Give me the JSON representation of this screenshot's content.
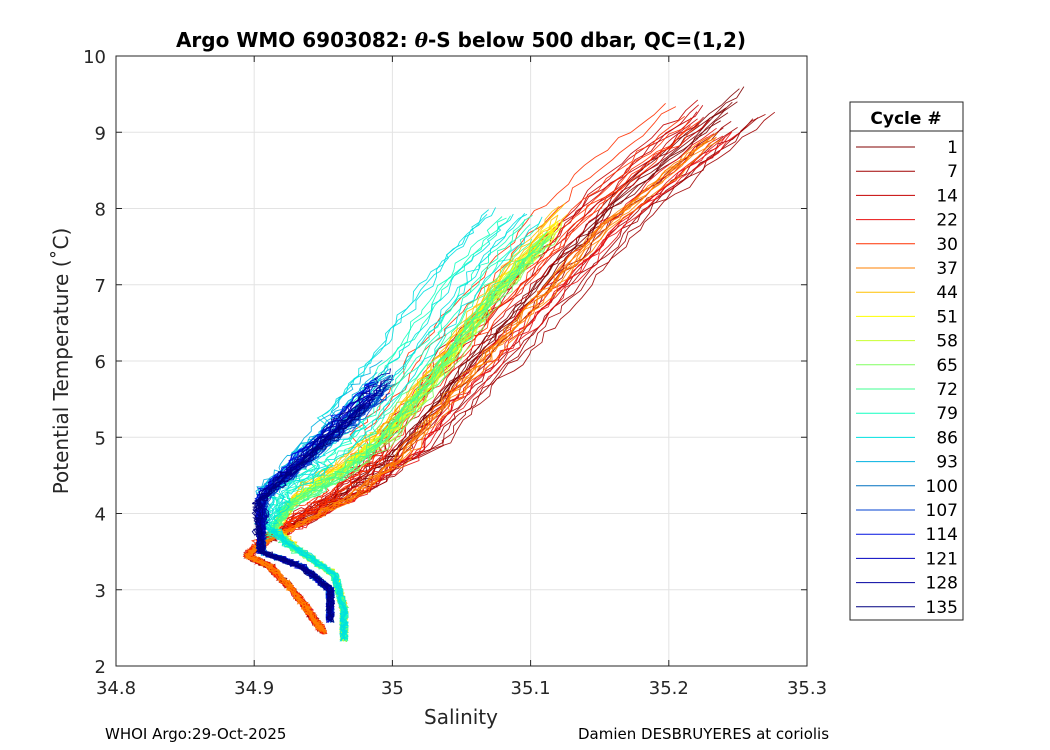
{
  "chart_data": {
    "type": "line",
    "title_prefix": "Argo WMO 6903082: ",
    "title_theta": "θ",
    "title_suffix": "-S below 500 dbar,  QC=(1,2)",
    "xlabel": "Salinity",
    "ylabel": "Potential Temperature (˚C)",
    "xlim": [
      34.8,
      35.3
    ],
    "ylim": [
      2,
      10
    ],
    "xticks": [
      34.8,
      34.9,
      35.0,
      35.1,
      35.2,
      35.3
    ],
    "xtick_labels": [
      "34.8",
      "34.9",
      "35",
      "35.1",
      "35.2",
      "35.3"
    ],
    "yticks": [
      2,
      3,
      4,
      5,
      6,
      7,
      8,
      9,
      10
    ],
    "ytick_labels": [
      "2",
      "3",
      "4",
      "5",
      "6",
      "7",
      "8",
      "9",
      "10"
    ],
    "grid": true,
    "legend": {
      "title": "Cycle #",
      "placement": "outside-right",
      "entries": [
        {
          "label": "1",
          "color": "#800000"
        },
        {
          "label": "7",
          "color": "#a00000"
        },
        {
          "label": "14",
          "color": "#c40000"
        },
        {
          "label": "22",
          "color": "#e81010"
        },
        {
          "label": "30",
          "color": "#ff3000"
        },
        {
          "label": "37",
          "color": "#ff8000"
        },
        {
          "label": "44",
          "color": "#ffc000"
        },
        {
          "label": "51",
          "color": "#ffff00"
        },
        {
          "label": "58",
          "color": "#c8ff30"
        },
        {
          "label": "65",
          "color": "#80ff60"
        },
        {
          "label": "72",
          "color": "#40ff90"
        },
        {
          "label": "79",
          "color": "#10ffc0"
        },
        {
          "label": "86",
          "color": "#00e0e0"
        },
        {
          "label": "93",
          "color": "#00b0e0"
        },
        {
          "label": "100",
          "color": "#0070c0"
        },
        {
          "label": "107",
          "color": "#0040d0"
        },
        {
          "label": "114",
          "color": "#0010e0"
        },
        {
          "label": "121",
          "color": "#0000c0"
        },
        {
          "label": "128",
          "color": "#0000a0"
        },
        {
          "label": "135",
          "color": "#000080"
        }
      ]
    },
    "profile_templates": {
      "early": [
        [
          34.95,
          2.45
        ],
        [
          34.944,
          2.6
        ],
        [
          34.93,
          2.95
        ],
        [
          34.912,
          3.3
        ],
        [
          34.895,
          3.45
        ],
        [
          34.905,
          3.6
        ],
        [
          34.93,
          3.85
        ],
        [
          34.965,
          4.2
        ],
        [
          35.0,
          4.7
        ],
        [
          35.04,
          5.6
        ],
        [
          35.09,
          6.6
        ],
        [
          35.15,
          7.8
        ],
        [
          35.23,
          9.0
        ]
      ],
      "mid": [
        [
          34.965,
          2.35
        ],
        [
          34.965,
          2.75
        ],
        [
          34.958,
          3.2
        ],
        [
          34.93,
          3.55
        ],
        [
          34.915,
          3.8
        ],
        [
          34.93,
          4.2
        ],
        [
          34.965,
          4.6
        ],
        [
          35.0,
          5.1
        ],
        [
          35.04,
          6.0
        ],
        [
          35.08,
          7.0
        ],
        [
          35.12,
          7.8
        ]
      ],
      "late": [
        [
          34.955,
          2.6
        ],
        [
          34.955,
          3.0
        ],
        [
          34.935,
          3.3
        ],
        [
          34.905,
          3.5
        ],
        [
          34.905,
          3.8
        ],
        [
          34.905,
          4.2
        ],
        [
          34.93,
          4.6
        ],
        [
          34.96,
          5.1
        ],
        [
          34.99,
          5.6
        ]
      ]
    },
    "series": [
      {
        "name": "1",
        "template": "early",
        "color": "#800000",
        "ds": 0.02,
        "dt": 0.6
      },
      {
        "name": "7",
        "template": "early",
        "color": "#a00000",
        "ds": 0.04,
        "dt": 0.2
      },
      {
        "name": "14",
        "template": "early",
        "color": "#c40000",
        "ds": -0.01,
        "dt": 0.4
      },
      {
        "name": "22",
        "template": "early",
        "color": "#e81010",
        "ds": 0.015,
        "dt": 0.0
      },
      {
        "name": "30",
        "template": "early",
        "color": "#ff3000",
        "ds": -0.025,
        "dt": 0.3
      },
      {
        "name": "37",
        "template": "early",
        "color": "#ff8000",
        "ds": 0.005,
        "dt": -0.1
      },
      {
        "name": "44",
        "template": "mid",
        "color": "#ffc000",
        "ds": 0.005,
        "dt": 0.2
      },
      {
        "name": "51",
        "template": "mid",
        "color": "#ffff00",
        "ds": 0.0,
        "dt": 0.0
      },
      {
        "name": "58",
        "template": "mid",
        "color": "#c8ff30",
        "ds": -0.005,
        "dt": -0.1
      },
      {
        "name": "65",
        "template": "mid",
        "color": "#80ff60",
        "ds": -0.01,
        "dt": -0.3
      },
      {
        "name": "72",
        "template": "mid",
        "color": "#40ff90",
        "ds": -0.02,
        "dt": -0.4
      },
      {
        "name": "79",
        "template": "mid",
        "color": "#10ffc0",
        "ds": -0.035,
        "dt": 0.1
      },
      {
        "name": "86",
        "template": "mid",
        "color": "#00e0e0",
        "ds": -0.045,
        "dt": 0.2
      },
      {
        "name": "93",
        "template": "late",
        "color": "#00b0e0",
        "ds": 0.005,
        "dt": 0.4
      },
      {
        "name": "100",
        "template": "late",
        "color": "#0070c0",
        "ds": 0.01,
        "dt": 0.2
      },
      {
        "name": "107",
        "template": "late",
        "color": "#0040d0",
        "ds": 0.005,
        "dt": 0.0
      },
      {
        "name": "114",
        "template": "late",
        "color": "#0010e0",
        "ds": 0.0,
        "dt": 0.1
      },
      {
        "name": "121",
        "template": "late",
        "color": "#0000c0",
        "ds": -0.005,
        "dt": -0.1
      },
      {
        "name": "128",
        "template": "late",
        "color": "#0000a0",
        "ds": 0.01,
        "dt": 0.3
      },
      {
        "name": "135",
        "template": "late",
        "color": "#000080",
        "ds": -0.01,
        "dt": -0.2
      }
    ]
  },
  "footer": {
    "left": "WHOI Argo:29-Oct-2025",
    "right": "Damien DESBRUYERES at coriolis"
  }
}
